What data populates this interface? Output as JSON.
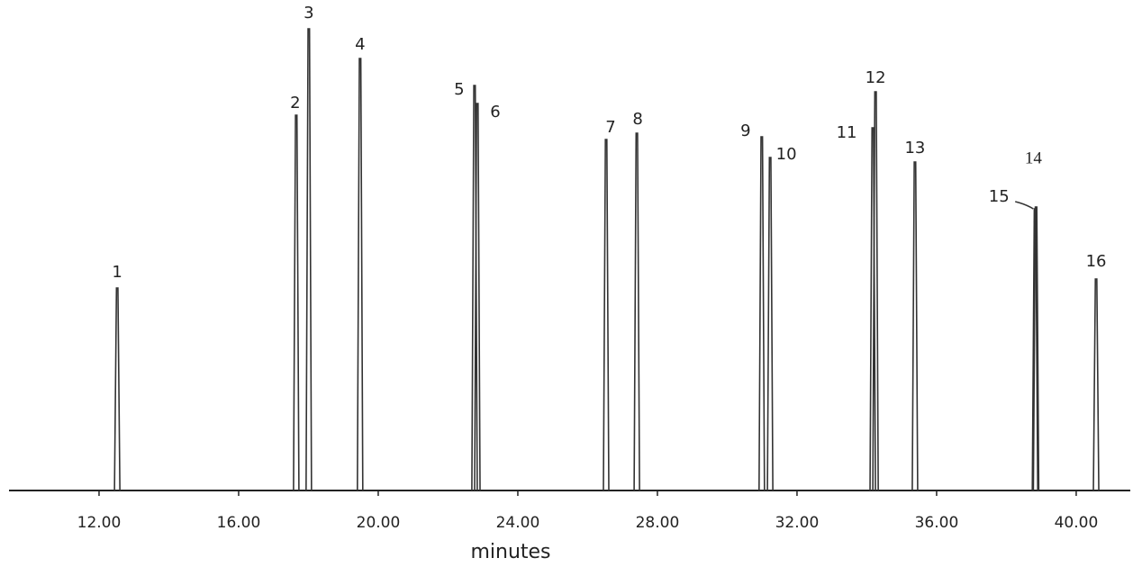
{
  "chart_data": {
    "type": "chromatogram",
    "xlabel": "minutes",
    "xlim": [
      9.42,
      41.55
    ],
    "ylim": [
      0,
      520
    ],
    "xticks": [
      {
        "value": 12,
        "label": "12.00"
      },
      {
        "value": 16,
        "label": "16.00"
      },
      {
        "value": 20,
        "label": "20.00"
      },
      {
        "value": 24,
        "label": "24.00"
      },
      {
        "value": 28,
        "label": "28.00"
      },
      {
        "value": 32,
        "label": "32.00"
      },
      {
        "value": 36,
        "label": "36.00"
      },
      {
        "value": 40,
        "label": "40.00"
      }
    ],
    "color": "#333333",
    "peaks": [
      {
        "label": "1",
        "time": 12.52,
        "height": 225
      },
      {
        "label": "2",
        "time": 17.65,
        "height": 417
      },
      {
        "label": "3",
        "time": 18.01,
        "height": 513
      },
      {
        "label": "4",
        "time": 19.48,
        "height": 480
      },
      {
        "label": "5",
        "time": 22.76,
        "height": 450
      },
      {
        "label": "6",
        "time": 22.84,
        "height": 430
      },
      {
        "label": "7",
        "time": 26.53,
        "height": 390
      },
      {
        "label": "8",
        "time": 27.41,
        "height": 397
      },
      {
        "label": "9",
        "time": 30.99,
        "height": 393
      },
      {
        "label": "10",
        "time": 31.23,
        "height": 370
      },
      {
        "label": "11",
        "time": 34.17,
        "height": 403
      },
      {
        "label": "12",
        "time": 34.25,
        "height": 443
      },
      {
        "label": "13",
        "time": 35.38,
        "height": 365
      },
      {
        "label": "14",
        "time": 38.85,
        "height": 315
      },
      {
        "label": "15",
        "time": 38.82,
        "height": 313
      },
      {
        "label": "16",
        "time": 40.57,
        "height": 235
      }
    ]
  }
}
